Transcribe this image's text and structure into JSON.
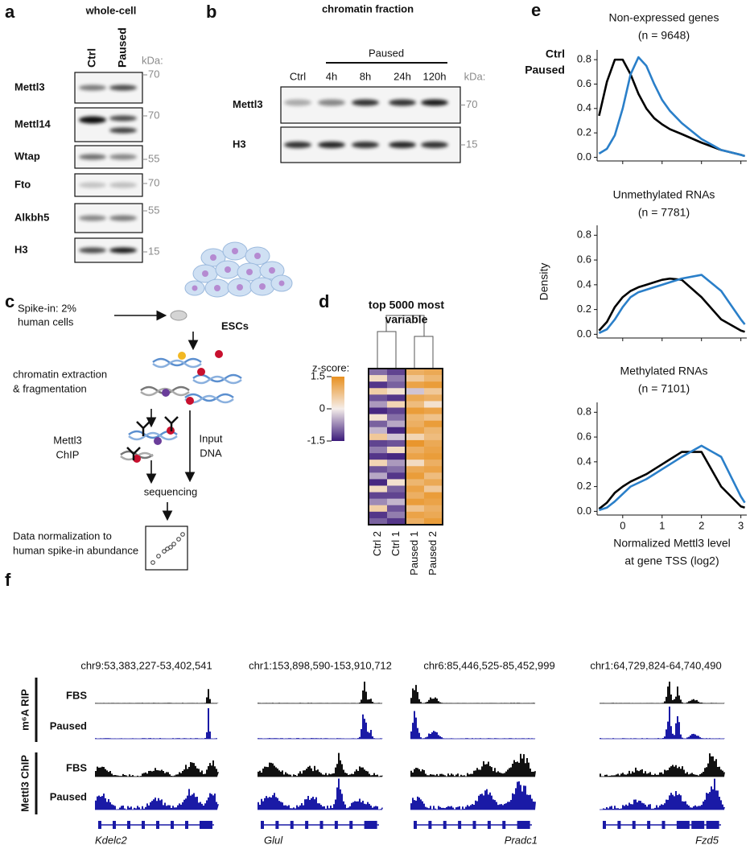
{
  "panel_a": {
    "letter": "a",
    "title": "whole-cell",
    "lanes": [
      "Ctrl",
      "Paused"
    ],
    "kda_label": "kDa:",
    "blots": [
      {
        "protein": "Mettl3",
        "marker": 70
      },
      {
        "protein": "Mettl14",
        "marker": 70
      },
      {
        "protein": "Wtap",
        "marker": 55
      },
      {
        "protein": "Fto",
        "marker": 70
      },
      {
        "protein": "Alkbh5",
        "marker": 55
      },
      {
        "protein": "H3",
        "marker": 15
      }
    ]
  },
  "panel_b": {
    "letter": "b",
    "title": "chromatin fraction",
    "group_label": "Paused",
    "lanes": [
      "Ctrl",
      "4h",
      "8h",
      "24h",
      "120h"
    ],
    "kda_label": "kDa:",
    "blots": [
      {
        "protein": "Mettl3",
        "marker": 70
      },
      {
        "protein": "H3",
        "marker": 15
      }
    ]
  },
  "panel_c": {
    "letter": "c",
    "spike_in": [
      "Spike-in: 2%",
      "human cells"
    ],
    "cells": "ESCs",
    "extraction": [
      "chromatin extraction",
      "& fragmentation"
    ],
    "chip": [
      "Mettl3",
      "ChIP"
    ],
    "input": [
      "Input",
      "DNA"
    ],
    "sequencing": "sequencing",
    "normalization": [
      "Data normalization to",
      "human spike-in abundance"
    ]
  },
  "panel_d": {
    "letter": "d",
    "title": [
      "top 5000 most",
      "variable"
    ],
    "colorbar_label": "z-score:",
    "colorbar_ticks": [
      1.5,
      0,
      -1.5
    ],
    "columns": [
      "Ctrl 2",
      "Ctrl 1",
      "Paused 1",
      "Paused 2"
    ],
    "rows": [
      [
        -0.9,
        -1.2,
        1.0,
        1.1
      ],
      [
        0.3,
        -0.8,
        0.6,
        0.9
      ],
      [
        -1.3,
        -1.0,
        1.2,
        1.3
      ],
      [
        0.5,
        0.2,
        -0.3,
        0.6
      ],
      [
        -1.1,
        -1.3,
        1.1,
        1.0
      ],
      [
        -0.6,
        0.4,
        0.8,
        0.2
      ],
      [
        -1.4,
        -1.2,
        1.3,
        1.2
      ],
      [
        0.2,
        -0.9,
        0.9,
        0.7
      ],
      [
        -1.0,
        -0.5,
        1.0,
        1.3
      ],
      [
        -0.4,
        -1.4,
        1.2,
        0.9
      ],
      [
        0.6,
        -0.3,
        0.4,
        0.8
      ],
      [
        -1.2,
        -1.1,
        1.4,
        1.1
      ],
      [
        -0.8,
        0.3,
        1.0,
        1.2
      ],
      [
        -1.3,
        -1.4,
        1.2,
        1.3
      ],
      [
        0.4,
        -0.6,
        0.3,
        1.0
      ],
      [
        -1.1,
        -0.9,
        1.1,
        1.2
      ],
      [
        -0.5,
        -1.3,
        1.3,
        0.8
      ],
      [
        -1.4,
        0.2,
        0.9,
        1.1
      ],
      [
        0.3,
        -1.0,
        1.2,
        0.6
      ],
      [
        -1.2,
        -1.2,
        1.0,
        1.3
      ],
      [
        -0.7,
        -0.4,
        1.3,
        1.2
      ],
      [
        0.5,
        -1.1,
        0.7,
        1.0
      ],
      [
        -1.3,
        -0.8,
        1.2,
        1.1
      ],
      [
        -1.0,
        -1.3,
        1.0,
        1.3
      ]
    ]
  },
  "panel_e": {
    "letter": "e"
  },
  "chart_data": [
    {
      "type": "line",
      "title": "Non-expressed genes",
      "subtitle": "(n = 9648)",
      "x": [
        -0.6,
        -0.4,
        -0.2,
        0,
        0.2,
        0.4,
        0.6,
        0.8,
        1.0,
        1.2,
        1.5,
        2.0,
        2.5,
        3.0,
        3.1
      ],
      "series": [
        {
          "name": "Ctrl",
          "color": "#000000",
          "values": [
            0.34,
            0.62,
            0.8,
            0.8,
            0.68,
            0.52,
            0.4,
            0.32,
            0.27,
            0.23,
            0.19,
            0.12,
            0.06,
            0.02,
            0.01
          ]
        },
        {
          "name": "Paused",
          "color": "#2a7fc9",
          "values": [
            0.03,
            0.07,
            0.18,
            0.4,
            0.68,
            0.82,
            0.75,
            0.6,
            0.47,
            0.38,
            0.28,
            0.15,
            0.06,
            0.02,
            0.01
          ]
        }
      ],
      "xlim": [
        -0.65,
        3.15
      ],
      "ylim": [
        -0.03,
        0.88
      ],
      "xticks": [
        0,
        1,
        2,
        3
      ],
      "yticks": [
        {
          "value": 0,
          "label": "0.0"
        },
        0.2,
        0.4,
        0.6,
        0.8
      ]
    },
    {
      "type": "line",
      "title": "Unmethylated RNAs",
      "subtitle": "(n = 7781)",
      "ylabel": "Density",
      "x": [
        -0.6,
        -0.4,
        -0.2,
        0,
        0.2,
        0.4,
        0.6,
        0.8,
        1.0,
        1.2,
        1.5,
        2.0,
        2.5,
        3.0,
        3.1
      ],
      "series": [
        {
          "color": "#000000",
          "values": [
            0.03,
            0.1,
            0.22,
            0.3,
            0.35,
            0.38,
            0.4,
            0.42,
            0.44,
            0.45,
            0.44,
            0.3,
            0.12,
            0.03,
            0.02
          ]
        },
        {
          "color": "#2a7fc9",
          "values": [
            0.01,
            0.04,
            0.12,
            0.22,
            0.3,
            0.34,
            0.36,
            0.38,
            0.4,
            0.42,
            0.45,
            0.48,
            0.35,
            0.12,
            0.08
          ]
        }
      ],
      "xlim": [
        -0.65,
        3.15
      ],
      "ylim": [
        -0.03,
        0.88
      ],
      "xticks": [
        0,
        1,
        2,
        3
      ],
      "yticks": [
        {
          "value": 0,
          "label": "0.0"
        },
        0.2,
        0.4,
        0.6,
        0.8
      ]
    },
    {
      "type": "line",
      "title": "Methylated RNAs",
      "subtitle": "(n = 7101)",
      "xlabel": [
        "Normalized Mettl3 level",
        "at gene TSS (log2)"
      ],
      "x": [
        -0.6,
        -0.4,
        -0.2,
        0,
        0.2,
        0.4,
        0.6,
        0.8,
        1.0,
        1.2,
        1.5,
        2.0,
        2.5,
        3.0,
        3.1
      ],
      "series": [
        {
          "color": "#000000",
          "values": [
            0.02,
            0.07,
            0.15,
            0.2,
            0.24,
            0.27,
            0.3,
            0.34,
            0.38,
            0.42,
            0.48,
            0.48,
            0.2,
            0.04,
            0.03
          ]
        },
        {
          "color": "#2a7fc9",
          "values": [
            0.01,
            0.03,
            0.08,
            0.14,
            0.2,
            0.23,
            0.26,
            0.3,
            0.34,
            0.38,
            0.44,
            0.53,
            0.44,
            0.12,
            0.07
          ]
        }
      ],
      "xlim": [
        -0.65,
        3.15
      ],
      "ylim": [
        -0.03,
        0.88
      ],
      "xticks": [
        0,
        1,
        2,
        3
      ],
      "yticks": [
        {
          "value": 0,
          "label": "0.0"
        },
        0.2,
        0.4,
        0.6,
        0.8
      ]
    }
  ],
  "panel_f": {
    "letter": "f",
    "regions": [
      "chr9:53,383,227-53,402,541",
      "chr1:153,898,590-153,910,712",
      "chr6:85,446,525-85,452,999",
      "chr1:64,729,824-64,740,490"
    ],
    "assays": [
      {
        "label": "m⁶A RIP",
        "tracks": [
          "FBS",
          "Paused"
        ]
      },
      {
        "label": "Mettl3 ChIP",
        "tracks": [
          "FBS",
          "Paused"
        ]
      }
    ],
    "genes": [
      "Kdelc2",
      "Glul",
      "Pradc1",
      "Fzd5"
    ]
  }
}
